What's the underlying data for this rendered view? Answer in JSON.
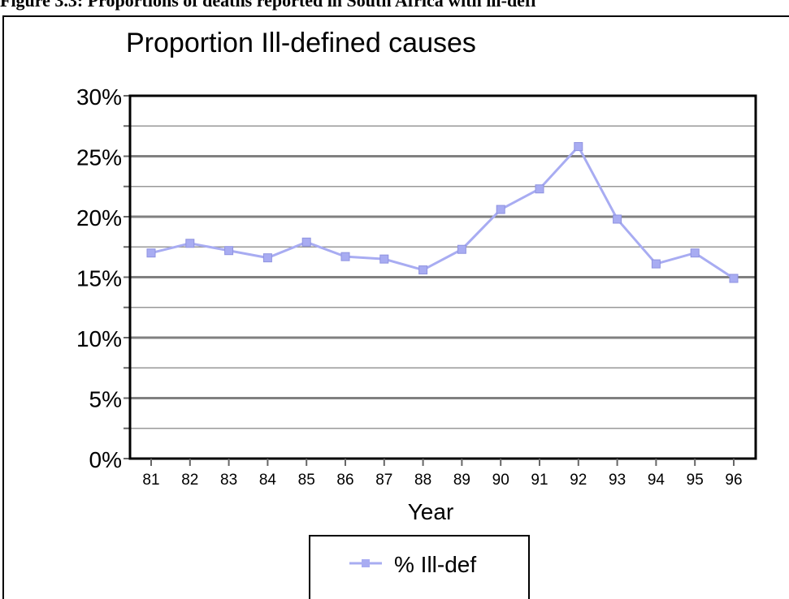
{
  "caption": "Figure 3.3: Proportions of deaths reported in South Africa with ill-defi",
  "chart_data": {
    "type": "line",
    "title": "Proportion Ill-defined causes",
    "x_label": "Year",
    "categories": [
      "81",
      "82",
      "83",
      "84",
      "85",
      "86",
      "87",
      "88",
      "89",
      "90",
      "91",
      "92",
      "93",
      "94",
      "95",
      "96"
    ],
    "series": [
      {
        "name": "% Ill-def",
        "color": "#a8acf2",
        "values": [
          17.0,
          17.8,
          17.2,
          16.6,
          17.9,
          16.7,
          16.5,
          15.6,
          17.3,
          20.6,
          22.3,
          25.8,
          19.8,
          16.1,
          17.0,
          14.9
        ]
      }
    ],
    "ylim": [
      0,
      30
    ],
    "yticks": [
      {
        "value": 0,
        "label": "0%"
      },
      {
        "value": 5,
        "label": "5%"
      },
      {
        "value": 10,
        "label": "10%"
      },
      {
        "value": 15,
        "label": "15%"
      },
      {
        "value": 20,
        "label": "20%"
      },
      {
        "value": 25,
        "label": "25%"
      },
      {
        "value": 30,
        "label": "30%"
      }
    ],
    "minor_yticks": [
      2.5,
      7.5,
      12.5,
      17.5,
      22.5,
      27.5
    ],
    "grid": true,
    "legend": "bottom"
  }
}
